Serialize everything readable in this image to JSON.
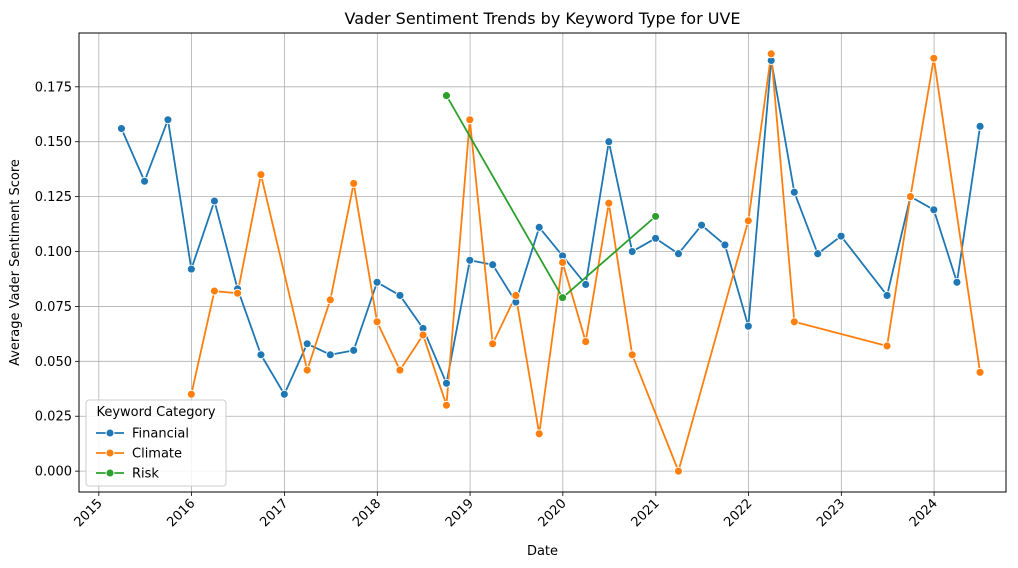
{
  "chart_data": {
    "type": "line",
    "title": "Vader Sentiment Trends by Keyword Type for UVE",
    "xlabel": "Date",
    "ylabel": "Average Vader Sentiment Score",
    "xlim": [
      "2014-10-15",
      "2024-10-10"
    ],
    "ylim": [
      -0.0095,
      0.1995
    ],
    "x_ticks": [
      "2015",
      "2016",
      "2017",
      "2018",
      "2019",
      "2020",
      "2021",
      "2022",
      "2023",
      "2024"
    ],
    "y_ticks": [
      "0.000",
      "0.025",
      "0.050",
      "0.075",
      "0.100",
      "0.125",
      "0.150",
      "0.175"
    ],
    "grid": true,
    "legend": {
      "title": "Keyword Category",
      "position": "lower-left"
    },
    "series": [
      {
        "name": "Financial",
        "color": "#1f77b4",
        "points": [
          [
            "2015-03-31",
            0.156
          ],
          [
            "2015-06-30",
            0.132
          ],
          [
            "2015-09-30",
            0.16
          ],
          [
            "2015-12-31",
            0.092
          ],
          [
            "2016-03-31",
            0.123
          ],
          [
            "2016-06-30",
            0.083
          ],
          [
            "2016-09-30",
            0.053
          ],
          [
            "2016-12-31",
            0.035
          ],
          [
            "2017-03-31",
            0.058
          ],
          [
            "2017-06-30",
            0.053
          ],
          [
            "2017-09-30",
            0.055
          ],
          [
            "2017-12-31",
            0.086
          ],
          [
            "2018-03-31",
            0.08
          ],
          [
            "2018-06-30",
            0.065
          ],
          [
            "2018-09-30",
            0.04
          ],
          [
            "2018-12-31",
            0.096
          ],
          [
            "2019-03-31",
            0.094
          ],
          [
            "2019-06-30",
            0.077
          ],
          [
            "2019-09-30",
            0.111
          ],
          [
            "2019-12-31",
            0.098
          ],
          [
            "2020-03-31",
            0.085
          ],
          [
            "2020-06-30",
            0.15
          ],
          [
            "2020-09-30",
            0.1
          ],
          [
            "2020-12-31",
            0.106
          ],
          [
            "2021-03-31",
            0.099
          ],
          [
            "2021-06-30",
            0.112
          ],
          [
            "2021-09-30",
            0.103
          ],
          [
            "2021-12-31",
            0.066
          ],
          [
            "2022-03-31",
            0.187
          ],
          [
            "2022-06-30",
            0.127
          ],
          [
            "2022-09-30",
            0.099
          ],
          [
            "2022-12-31",
            0.107
          ],
          [
            "2023-06-30",
            0.08
          ],
          [
            "2023-09-30",
            0.125
          ],
          [
            "2023-12-31",
            0.119
          ],
          [
            "2024-03-31",
            0.086
          ],
          [
            "2024-06-30",
            0.157
          ]
        ]
      },
      {
        "name": "Climate",
        "color": "#ff7f0e",
        "points": [
          [
            "2015-12-31",
            0.035
          ],
          [
            "2016-03-31",
            0.082
          ],
          [
            "2016-06-30",
            0.081
          ],
          [
            "2016-09-30",
            0.135
          ],
          [
            "2017-03-31",
            0.046
          ],
          [
            "2017-06-30",
            0.078
          ],
          [
            "2017-09-30",
            0.131
          ],
          [
            "2017-12-31",
            0.068
          ],
          [
            "2018-03-31",
            0.046
          ],
          [
            "2018-06-30",
            0.062
          ],
          [
            "2018-09-30",
            0.03
          ],
          [
            "2018-12-31",
            0.16
          ],
          [
            "2019-03-31",
            0.058
          ],
          [
            "2019-06-30",
            0.08
          ],
          [
            "2019-09-30",
            0.017
          ],
          [
            "2019-12-31",
            0.095
          ],
          [
            "2020-03-31",
            0.059
          ],
          [
            "2020-06-30",
            0.122
          ],
          [
            "2020-09-30",
            0.053
          ],
          [
            "2021-03-31",
            0.0
          ],
          [
            "2021-12-31",
            0.114
          ],
          [
            "2022-03-31",
            0.19
          ],
          [
            "2022-06-30",
            0.068
          ],
          [
            "2023-06-30",
            0.057
          ],
          [
            "2023-09-30",
            0.125
          ],
          [
            "2023-12-31",
            0.188
          ],
          [
            "2024-06-30",
            0.045
          ]
        ]
      },
      {
        "name": "Risk",
        "color": "#2ca02c",
        "points": [
          [
            "2018-09-30",
            0.171
          ],
          [
            "2019-12-31",
            0.079
          ],
          [
            "2020-12-31",
            0.116
          ]
        ]
      }
    ]
  }
}
